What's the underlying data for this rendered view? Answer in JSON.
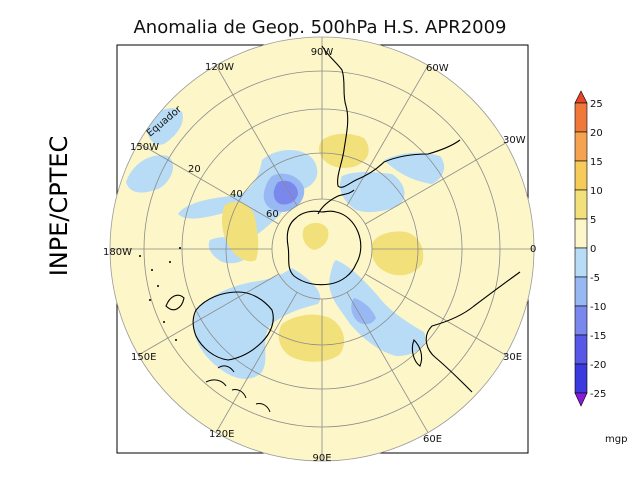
{
  "title": "Anomalia de Geop. 500hPa H.S. APR2009",
  "side_label": "INPE/CPTEC",
  "map": {
    "projection": "polar-stereographic-south",
    "longitude_labels": [
      "90W",
      "60W",
      "30W",
      "0",
      "30E",
      "60E",
      "90E",
      "120E",
      "150E",
      "180W",
      "150W",
      "120W"
    ],
    "latitude_labels": [
      "Equador",
      "20",
      "40",
      "60"
    ]
  },
  "colorbar": {
    "levels": [
      "25",
      "20",
      "15",
      "10",
      "5",
      "0",
      "-5",
      "-10",
      "-15",
      "-20",
      "-25"
    ],
    "unit": "mgp",
    "colors": {
      "above_25": "#e8462a",
      "c20_25": "#f07838",
      "c15_20": "#f5a350",
      "c10_15": "#f7cb5a",
      "c5_10": "#f2e07a",
      "c0_5": "#fcf6c8",
      "cm5_0": "#b8dcf6",
      "cm10_m5": "#98b8f4",
      "cm15_m10": "#7a88ee",
      "cm20_m15": "#5858e8",
      "cm25_m20": "#3a3ade",
      "below_m25": "#8a1ad8"
    }
  }
}
